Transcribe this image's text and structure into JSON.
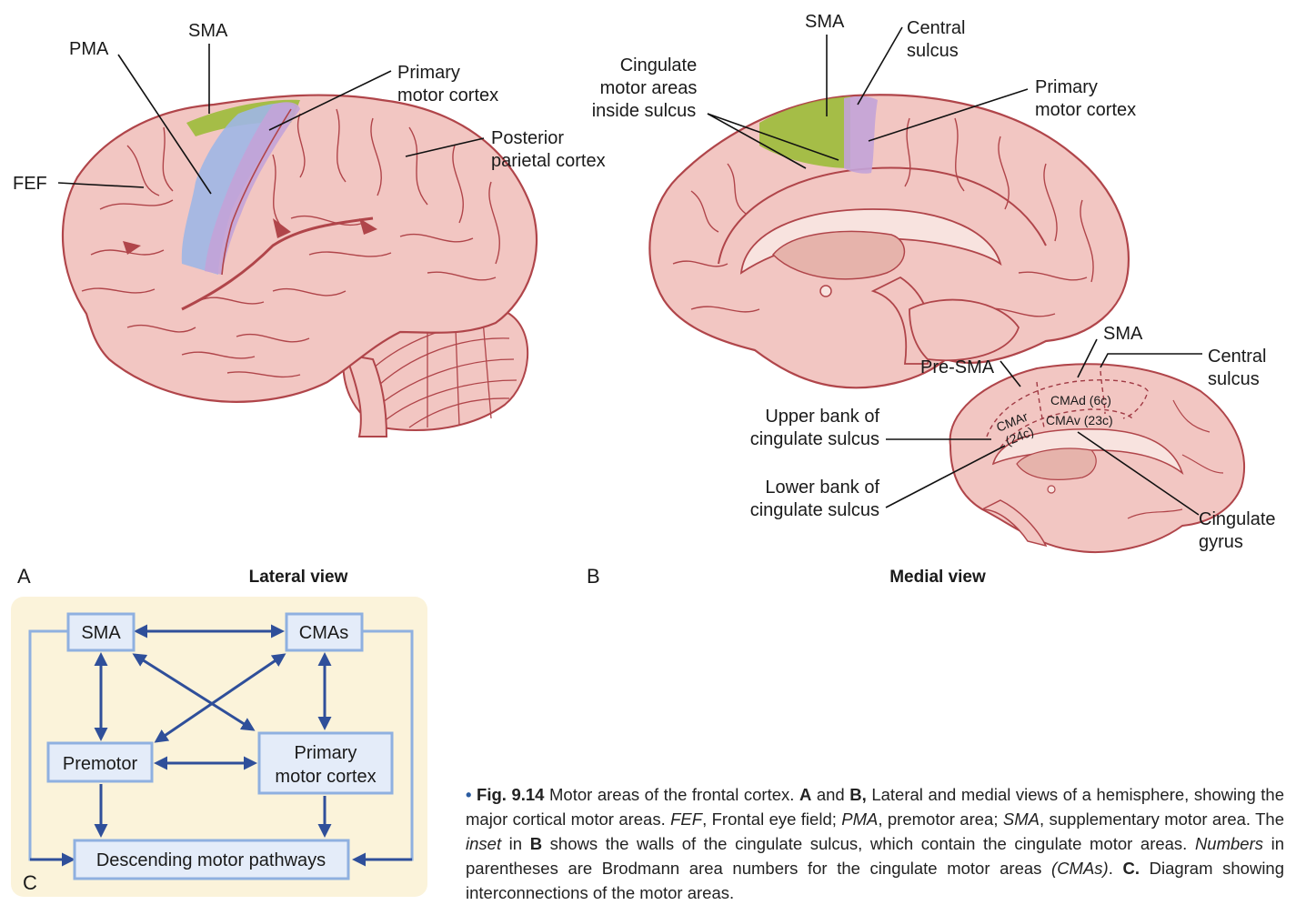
{
  "panel_a": {
    "letter": "A",
    "view_title": "Lateral view",
    "labels": {
      "sma": "SMA",
      "pma": "PMA",
      "primary_motor_1": "Primary",
      "primary_motor_2": "motor cortex",
      "posterior_1": "Posterior",
      "posterior_2": "parietal cortex",
      "fef": "FEF"
    }
  },
  "panel_b": {
    "letter": "B",
    "view_title": "Medial view",
    "labels": {
      "sma": "SMA",
      "central_1": "Central",
      "central_2": "sulcus",
      "cingulate_1": "Cingulate",
      "cingulate_2": "motor areas",
      "cingulate_3": "inside sulcus",
      "primary_1": "Primary",
      "primary_2": "motor cortex"
    },
    "inset": {
      "sma": "SMA",
      "pre_sma": "Pre-SMA",
      "central_1": "Central",
      "central_2": "sulcus",
      "cmad": "CMAd (6c)",
      "cmav": "CMAv (23c)",
      "cmar_1": "CMAr",
      "cmar_2": "(24c)",
      "upper_1": "Upper bank of",
      "upper_2": "cingulate sulcus",
      "lower_1": "Lower bank of",
      "lower_2": "cingulate sulcus",
      "gyrus_1": "Cingulate",
      "gyrus_2": "gyrus"
    }
  },
  "panel_c": {
    "letter": "C",
    "boxes": {
      "sma": "SMA",
      "cmas": "CMAs",
      "premotor": "Premotor",
      "primary_1": "Primary",
      "primary_2": "motor cortex",
      "descending": "Descending motor pathways"
    }
  },
  "caption": {
    "fig": "Fig. 9.14",
    "t1": " Motor areas of the frontal cortex. ",
    "a": "A",
    "t2": " and ",
    "b": "B,",
    "t3": " Lateral and medial views of a hemisphere, showing the major cortical motor areas. ",
    "fef": "FEF",
    "t4": ", Frontal eye field; ",
    "pma": "PMA",
    "t5": ", premotor area; ",
    "sma": "SMA",
    "t6": ", supplementary motor area. The ",
    "inset": "inset",
    "t7": " in ",
    "b2": "B",
    "t8": " shows the walls of the cingulate sulcus, which contain the cingulate motor areas. ",
    "numbers": "Numbers",
    "t9": " in parentheses are Brodmann area numbers for the cingulate motor areas ",
    "cmas": "(CMAs)",
    "t10": ". ",
    "c": "C.",
    "t11": " Diagram showing interconnections of the motor areas."
  },
  "colors": {
    "brain_fill": "#f2c6c2",
    "brain_stroke": "#b0454a",
    "sma_green": "#9cbb3a",
    "pma_blue": "#9fb6e6",
    "motor_purple": "#c3a3d8",
    "panel_c_bg": "#fbf3da",
    "box_border": "#8fb0e0",
    "arrow": "#2f4f9a",
    "caption_bullet": "#2a5ba0"
  }
}
